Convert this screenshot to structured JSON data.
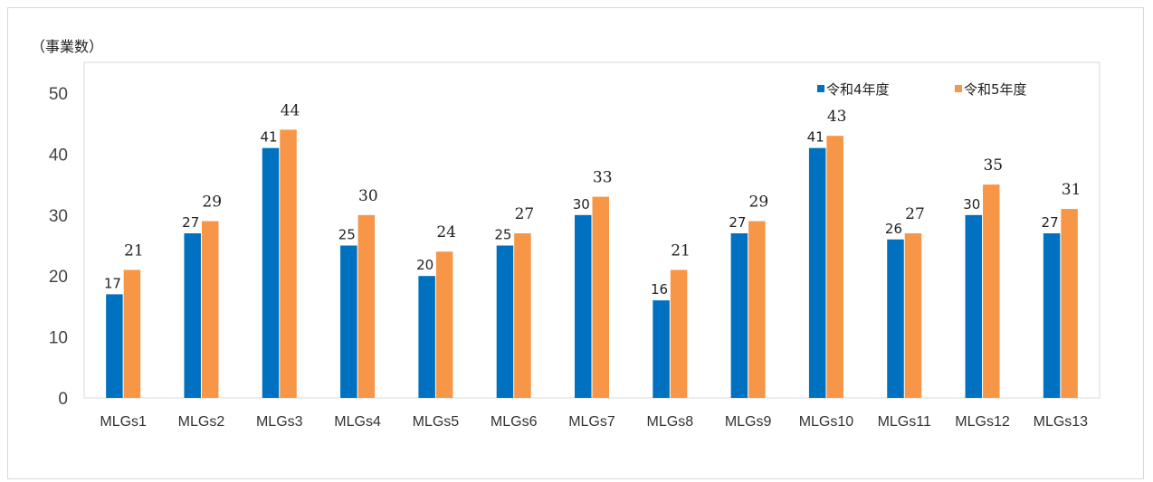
{
  "unit_label": "（事業数）",
  "colors": {
    "series1": "#0070C0",
    "series2": "#F79646"
  },
  "chart_data": {
    "type": "bar",
    "categories": [
      "MLGs1",
      "MLGs2",
      "MLGs3",
      "MLGs4",
      "MLGs5",
      "MLGs6",
      "MLGs7",
      "MLGs8",
      "MLGs9",
      "MLGs10",
      "MLGs11",
      "MLGs12",
      "MLGs13"
    ],
    "series": [
      {
        "name": "令和4年度",
        "values": [
          17,
          27,
          41,
          25,
          20,
          25,
          30,
          16,
          27,
          41,
          26,
          30,
          27
        ]
      },
      {
        "name": "令和5年度",
        "values": [
          21,
          29,
          44,
          30,
          24,
          27,
          33,
          21,
          29,
          43,
          27,
          35,
          31
        ]
      }
    ],
    "ylim": [
      0,
      50
    ],
    "yticks": [
      0,
      10,
      20,
      30,
      40,
      50
    ],
    "legend": "top-right",
    "grid": false
  }
}
